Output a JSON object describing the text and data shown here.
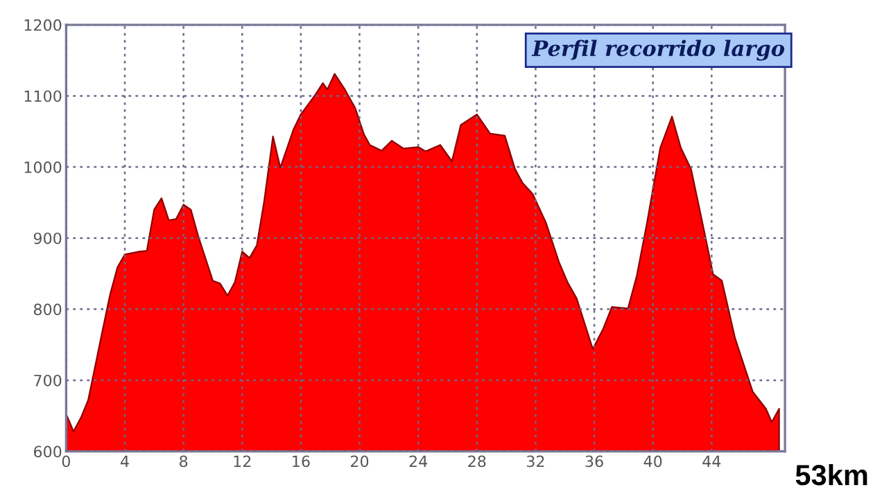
{
  "chart_data": {
    "type": "area",
    "title": "Perfil recorrido largo",
    "x": [
      0,
      0.2,
      0.5,
      1,
      1.5,
      2,
      2.5,
      3,
      3.5,
      4,
      5,
      5.5,
      6,
      6.5,
      7,
      7.5,
      8,
      8.5,
      9,
      10,
      10.5,
      11,
      11.5,
      12,
      12.5,
      13,
      13.5,
      14.1,
      14.6,
      15.5,
      16,
      17,
      17.5,
      17.8,
      18.3,
      19,
      19.7,
      20.3,
      20.7,
      21.5,
      22.2,
      23,
      24,
      24.5,
      25.5,
      26.3,
      26.9,
      28,
      28.9,
      29.9,
      30.6,
      31.1,
      31.8,
      32.7,
      33.6,
      34.2,
      34.8,
      35.9,
      36.6,
      37.2,
      38.3,
      38.9,
      39.6,
      40.5,
      41.3,
      41.9,
      42.6,
      43.5,
      44.1,
      44.7,
      45.6,
      46.8,
      47.7,
      48.1,
      48.6
    ],
    "series": [
      {
        "color": "#ff0000",
        "values": [
          652,
          643,
          628,
          647,
          672,
          722,
          772,
          821,
          859,
          877,
          881,
          882,
          940,
          956,
          925,
          927,
          947,
          940,
          903,
          840,
          836,
          819,
          838,
          881,
          872,
          890,
          952,
          1043,
          999,
          1053,
          1074,
          1102,
          1118,
          1109,
          1131,
          1109,
          1083,
          1046,
          1031,
          1023,
          1037,
          1026,
          1028,
          1022,
          1031,
          1008,
          1059,
          1074,
          1047,
          1044,
          997,
          978,
          962,
          922,
          866,
          837,
          815,
          744,
          772,
          803,
          801,
          847,
          922,
          1027,
          1071,
          1027,
          997,
          909,
          849,
          840,
          759,
          684,
          660,
          641,
          660
        ]
      }
    ],
    "xlim": [
      0,
      49
    ],
    "ylim": [
      600,
      1200
    ],
    "xticks": [
      0,
      4,
      8,
      12,
      16,
      20,
      24,
      28,
      32,
      36,
      40,
      44
    ],
    "yticks": [
      600,
      700,
      800,
      900,
      1000,
      1100,
      1200
    ],
    "grid": true,
    "annotations": [
      "53km"
    ]
  }
}
